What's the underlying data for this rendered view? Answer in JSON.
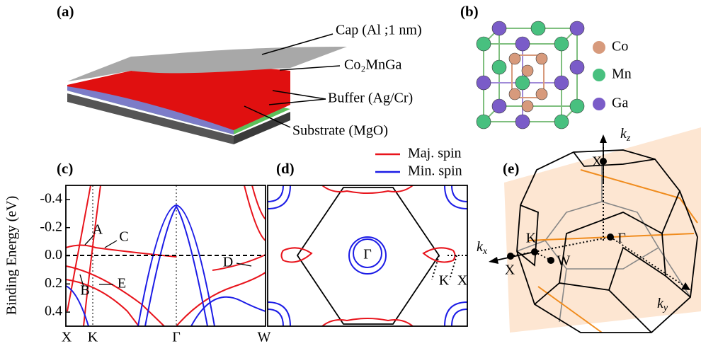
{
  "panels": {
    "a": {
      "label": "(a)",
      "layers": [
        "Cap (Al ;1 nm)",
        "Co₂MnGa",
        "Buffer (Ag/Cr)",
        "Substrate (MgO)"
      ]
    },
    "b": {
      "label": "(b)",
      "legend": [
        {
          "name": "Co",
          "color": "#d79a7c"
        },
        {
          "name": "Mn",
          "color": "#48c07f"
        },
        {
          "name": "Ga",
          "color": "#7a5cc8"
        }
      ]
    },
    "c": {
      "label": "(c)",
      "y_label": "Binding Energy (eV)",
      "ylim": [
        -0.5,
        0.5
      ],
      "yticks": [
        -0.4,
        -0.2,
        {
          "value": 0,
          "label": "0.0"
        },
        0.2,
        0.4
      ],
      "x_labels": [
        "X",
        "K",
        "Γ",
        "W"
      ],
      "annotations": [
        "A",
        "B",
        "C",
        "D",
        "E"
      ],
      "legend": [
        {
          "name": "Maj. spin",
          "color": "#e8141c"
        },
        {
          "name": "Min. spin",
          "color": "#1c1ce6"
        }
      ]
    },
    "d": {
      "label": "(d)",
      "points": [
        "Γ",
        "K",
        "X"
      ]
    },
    "e": {
      "label": "(e)",
      "axes": [
        {
          "base": "k",
          "sub": "z"
        },
        {
          "base": "k",
          "sub": "x"
        },
        {
          "base": "k",
          "sub": "y"
        }
      ],
      "points": [
        "X",
        "K",
        "Γ",
        "W",
        "X"
      ]
    }
  }
}
